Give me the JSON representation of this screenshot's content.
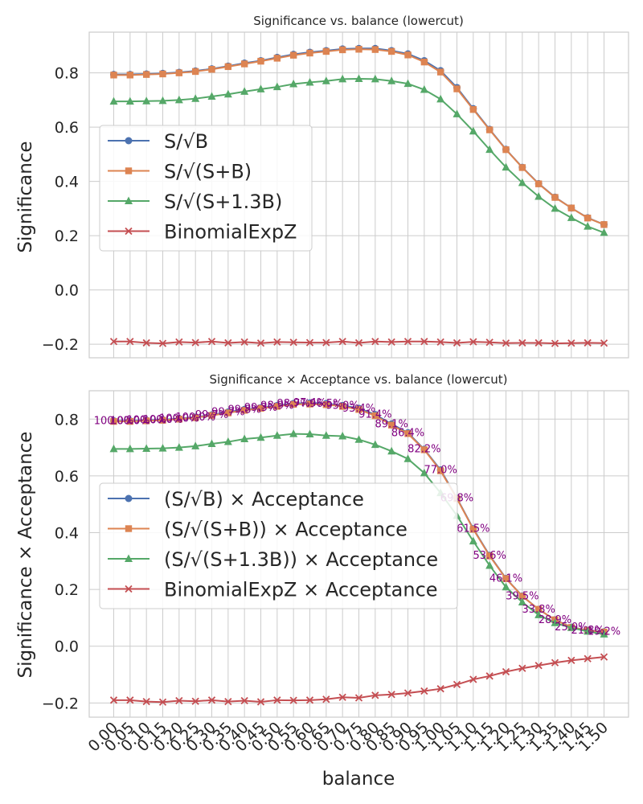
{
  "chart_data": [
    {
      "type": "line",
      "title": "Significance vs. balance (lowercut)",
      "xlabel": "",
      "ylabel": "Significance",
      "xlim": [
        -0.075,
        1.575
      ],
      "ylim": [
        -0.25,
        0.95
      ],
      "yticks": [
        -0.2,
        0.0,
        0.2,
        0.4,
        0.6,
        0.8
      ],
      "ytick_labels": [
        "−0.2",
        "0.0",
        "0.2",
        "0.4",
        "0.6",
        "0.8"
      ],
      "legend": "center-left",
      "x": [
        0.0,
        0.05,
        0.1,
        0.15,
        0.2,
        0.25,
        0.3,
        0.35,
        0.4,
        0.45,
        0.5,
        0.55,
        0.6,
        0.65,
        0.7,
        0.75,
        0.8,
        0.85,
        0.9,
        0.95,
        1.0,
        1.05,
        1.1,
        1.15,
        1.2,
        1.25,
        1.3,
        1.35,
        1.4,
        1.45,
        1.5
      ],
      "series": [
        {
          "name": "S/√B",
          "color": "#4c72b0",
          "marker": "circle",
          "values": [
            0.794,
            0.794,
            0.796,
            0.798,
            0.802,
            0.807,
            0.815,
            0.825,
            0.836,
            0.845,
            0.857,
            0.868,
            0.876,
            0.882,
            0.888,
            0.89,
            0.89,
            0.882,
            0.87,
            0.845,
            0.808,
            0.746,
            0.668,
            0.592,
            0.518,
            0.452,
            0.392,
            0.342,
            0.302,
            0.266,
            0.241
          ]
        },
        {
          "name": "S/√(S+B)",
          "color": "#dd8452",
          "marker": "square",
          "values": [
            0.792,
            0.792,
            0.794,
            0.796,
            0.8,
            0.805,
            0.813,
            0.823,
            0.833,
            0.843,
            0.854,
            0.865,
            0.873,
            0.879,
            0.885,
            0.887,
            0.886,
            0.879,
            0.866,
            0.84,
            0.803,
            0.741,
            0.665,
            0.59,
            0.517,
            0.451,
            0.391,
            0.341,
            0.302,
            0.265,
            0.241
          ]
        },
        {
          "name": "S/√(S+1.3B)",
          "color": "#55a868",
          "marker": "triangle",
          "values": [
            0.695,
            0.695,
            0.696,
            0.697,
            0.7,
            0.705,
            0.713,
            0.721,
            0.731,
            0.74,
            0.748,
            0.759,
            0.765,
            0.77,
            0.777,
            0.778,
            0.777,
            0.77,
            0.76,
            0.738,
            0.703,
            0.648,
            0.585,
            0.517,
            0.452,
            0.395,
            0.344,
            0.3,
            0.266,
            0.234,
            0.211
          ]
        },
        {
          "name": "BinomialExpZ",
          "color": "#c44e52",
          "marker": "x",
          "values": [
            -0.19,
            -0.19,
            -0.195,
            -0.197,
            -0.192,
            -0.194,
            -0.19,
            -0.195,
            -0.192,
            -0.196,
            -0.192,
            -0.193,
            -0.194,
            -0.194,
            -0.19,
            -0.195,
            -0.19,
            -0.192,
            -0.19,
            -0.19,
            -0.192,
            -0.195,
            -0.191,
            -0.193,
            -0.196,
            -0.195,
            -0.195,
            -0.197,
            -0.196,
            -0.195,
            -0.196
          ]
        }
      ]
    },
    {
      "type": "line",
      "title": "Significance × Acceptance vs. balance (lowercut)",
      "xlabel": "balance",
      "ylabel": "Significance × Acceptance",
      "xlim": [
        -0.075,
        1.575
      ],
      "ylim": [
        -0.25,
        0.9
      ],
      "yticks": [
        -0.2,
        0.0,
        0.2,
        0.4,
        0.6,
        0.8
      ],
      "ytick_labels": [
        "−0.2",
        "0.0",
        "0.2",
        "0.4",
        "0.6",
        "0.8"
      ],
      "xtick_labels": [
        "0.00",
        "0.05",
        "0.10",
        "0.15",
        "0.20",
        "0.25",
        "0.30",
        "0.35",
        "0.40",
        "0.45",
        "0.50",
        "0.55",
        "0.60",
        "0.65",
        "0.70",
        "0.75",
        "0.80",
        "0.85",
        "0.90",
        "0.95",
        "1.00",
        "1.05",
        "1.10",
        "1.15",
        "1.20",
        "1.25",
        "1.30",
        "1.35",
        "1.40",
        "1.45",
        "1.50"
      ],
      "legend": "center-left",
      "x": [
        0.0,
        0.05,
        0.1,
        0.15,
        0.2,
        0.25,
        0.3,
        0.35,
        0.4,
        0.45,
        0.5,
        0.55,
        0.6,
        0.65,
        0.7,
        0.75,
        0.8,
        0.85,
        0.9,
        0.95,
        1.0,
        1.05,
        1.1,
        1.15,
        1.2,
        1.25,
        1.3,
        1.35,
        1.4,
        1.45,
        1.5
      ],
      "series": [
        {
          "name": "(S/√B) × Acceptance",
          "color": "#4c72b0",
          "marker": "circle",
          "values": [
            0.794,
            0.794,
            0.796,
            0.798,
            0.802,
            0.807,
            0.815,
            0.825,
            0.834,
            0.84,
            0.848,
            0.855,
            0.857,
            0.855,
            0.848,
            0.838,
            0.816,
            0.783,
            0.752,
            0.694,
            0.621,
            0.522,
            0.414,
            0.32,
            0.239,
            0.177,
            0.13,
            0.093,
            0.067,
            0.056,
            0.051
          ]
        },
        {
          "name": "(S/√(S+B)) × Acceptance",
          "color": "#dd8452",
          "marker": "square",
          "values": [
            0.792,
            0.792,
            0.794,
            0.796,
            0.8,
            0.805,
            0.813,
            0.822,
            0.831,
            0.838,
            0.845,
            0.852,
            0.853,
            0.851,
            0.845,
            0.834,
            0.812,
            0.779,
            0.749,
            0.692,
            0.618,
            0.52,
            0.412,
            0.318,
            0.238,
            0.176,
            0.13,
            0.093,
            0.066,
            0.056,
            0.05
          ]
        },
        {
          "name": "(S/√(S+1.3B)) × Acceptance",
          "color": "#55a868",
          "marker": "triangle",
          "values": [
            0.695,
            0.695,
            0.696,
            0.697,
            0.7,
            0.705,
            0.713,
            0.72,
            0.73,
            0.735,
            0.742,
            0.748,
            0.747,
            0.742,
            0.74,
            0.728,
            0.71,
            0.687,
            0.66,
            0.61,
            0.54,
            0.46,
            0.37,
            0.284,
            0.208,
            0.155,
            0.11,
            0.082,
            0.065,
            0.052,
            0.042
          ]
        },
        {
          "name": "BinomialExpZ × Acceptance",
          "color": "#c44e52",
          "marker": "x",
          "values": [
            -0.19,
            -0.19,
            -0.195,
            -0.197,
            -0.192,
            -0.194,
            -0.19,
            -0.195,
            -0.192,
            -0.196,
            -0.19,
            -0.191,
            -0.19,
            -0.187,
            -0.18,
            -0.182,
            -0.173,
            -0.17,
            -0.165,
            -0.158,
            -0.15,
            -0.135,
            -0.117,
            -0.105,
            -0.09,
            -0.078,
            -0.068,
            -0.058,
            -0.05,
            -0.044,
            -0.038
          ]
        }
      ],
      "acceptance_labels": [
        "100.0%",
        "100.0%",
        "100.0%",
        "100.0%",
        "100.0%",
        "100.0%",
        "99.7%",
        "99.7%",
        "99.8%",
        "99.3%",
        "98.9%",
        "98.7%",
        "97.4%",
        "96.5%",
        "95.0%",
        "93.4%",
        "91.4%",
        "89.1%",
        "86.4%",
        "82.2%",
        "77.0%",
        "69.8%",
        "61.5%",
        "53.6%",
        "46.1%",
        "39.5%",
        "33.8%",
        "28.9%",
        "25.0%",
        "21.8%",
        "19.2%"
      ]
    }
  ]
}
